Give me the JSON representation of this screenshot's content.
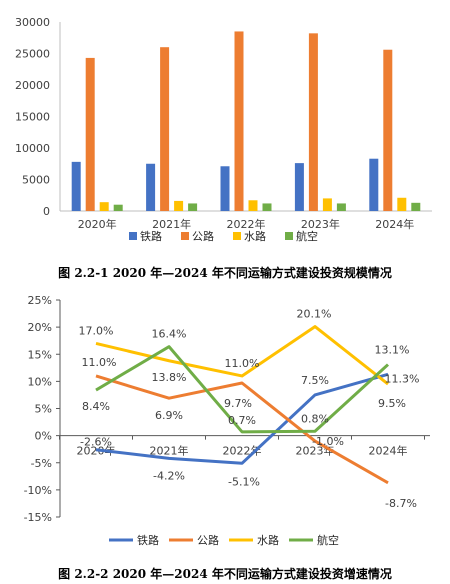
{
  "figures": {
    "fig1_caption": "图 2.2-1   2020 年—2024 年不同运输方式建设投资规模情况",
    "fig2_caption": "图 2.2-2   2020 年—2024 年不同运输方式建设投资增速情况"
  },
  "chart_data": [
    {
      "type": "bar",
      "categories": [
        "2020年",
        "2021年",
        "2022年",
        "2023年",
        "2024年"
      ],
      "series": [
        {
          "name": "铁路",
          "values": [
            7800,
            7500,
            7100,
            7600,
            8300
          ],
          "color": "#4472C4"
        },
        {
          "name": "公路",
          "values": [
            24300,
            26000,
            28500,
            28200,
            25600
          ],
          "color": "#ED7D31"
        },
        {
          "name": "水路",
          "values": [
            1400,
            1600,
            1700,
            2000,
            2100
          ],
          "color": "#FFC000"
        },
        {
          "name": "航空",
          "values": [
            1000,
            1200,
            1200,
            1200,
            1300
          ],
          "color": "#70AD47"
        }
      ],
      "ylim": [
        0,
        30000
      ],
      "yticks": [
        "0",
        "5000",
        "10000",
        "15000",
        "20000",
        "25000",
        "30000"
      ],
      "legend": "bottom",
      "grid": false
    },
    {
      "type": "line",
      "categories": [
        "2020年",
        "2021年",
        "2022年",
        "2023年",
        "2024年"
      ],
      "series": [
        {
          "name": "铁路",
          "values": [
            -2.6,
            -4.2,
            -5.1,
            7.5,
            11.3
          ],
          "labels": [
            "-2.6%",
            "-4.2%",
            "-5.1%",
            "7.5%",
            "11.3%"
          ],
          "color": "#4472C4"
        },
        {
          "name": "公路",
          "values": [
            11.0,
            6.9,
            9.7,
            -1.0,
            -8.7
          ],
          "labels": [
            "11.0%",
            "6.9%",
            "9.7%",
            "-1.0%",
            "-8.7%"
          ],
          "color": "#ED7D31"
        },
        {
          "name": "水路",
          "values": [
            17.0,
            13.8,
            11.0,
            20.1,
            9.5
          ],
          "labels": [
            "17.0%",
            "13.8%",
            "11.0%",
            "20.1%",
            "9.5%"
          ],
          "color": "#FFC000"
        },
        {
          "name": "航空",
          "values": [
            8.4,
            16.4,
            0.7,
            0.8,
            13.1
          ],
          "labels": [
            "8.4%",
            "16.4%",
            "0.7%",
            "0.8%",
            "13.1%"
          ],
          "color": "#70AD47"
        }
      ],
      "ylim": [
        -15,
        25
      ],
      "yticks": [
        "-15%",
        "-10%",
        "-5%",
        "0%",
        "5%",
        "10%",
        "15%",
        "20%",
        "25%"
      ],
      "legend": "bottom",
      "grid": false
    }
  ]
}
